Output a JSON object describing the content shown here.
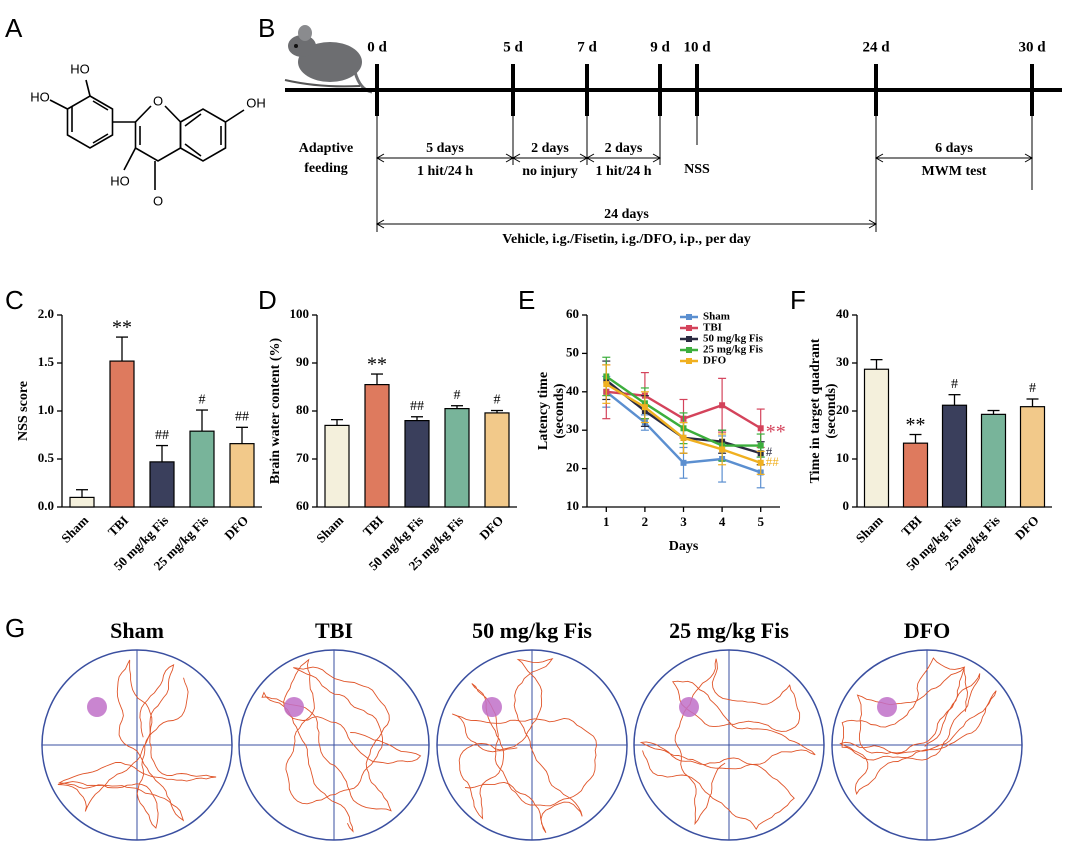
{
  "panel_labels": [
    "A",
    "B",
    "C",
    "D",
    "E",
    "F",
    "G"
  ],
  "structure": {
    "labels": [
      "HO",
      "HO",
      "OH",
      "HO",
      "O",
      "O"
    ]
  },
  "timeline": {
    "days": [
      "0 d",
      "5 d",
      "7 d",
      "9 d",
      "10 d",
      "24 d",
      "30 d"
    ],
    "phases": [
      {
        "duration": "5 days",
        "detail": "1 hit/24 h"
      },
      {
        "duration": "2 days",
        "detail": "no injury"
      },
      {
        "duration": "2 days",
        "detail": "1 hit/24 h"
      },
      {
        "duration": "6 days",
        "detail": "MWM test"
      }
    ],
    "feeding": [
      "Adaptive",
      "feeding"
    ],
    "nss": "NSS",
    "treatment": {
      "duration": "24 days",
      "detail": "Vehicle, i.g./Fisetin, i.g./DFO, i.p., per day"
    }
  },
  "chart_data": [
    {
      "type": "bar",
      "ylabel": "NSS score",
      "categories": [
        "Sham",
        "TBI",
        "50 mg/kg Fis",
        "25 mg/kg Fis",
        "DFO"
      ],
      "values": [
        0.1,
        1.52,
        0.47,
        0.79,
        0.66
      ],
      "errors": [
        0.08,
        0.25,
        0.17,
        0.22,
        0.17
      ],
      "colors": [
        "#f4f0dc",
        "#de7a5e",
        "#3a3f5c",
        "#78b49a",
        "#f2c98a"
      ],
      "annotations": [
        null,
        "**",
        "##",
        "#",
        "##"
      ],
      "ylim": [
        0,
        2
      ],
      "yticks": [
        {
          "value": 0,
          "label": "0.0"
        },
        0.5,
        {
          "value": 1,
          "label": "1.0"
        },
        1.5,
        {
          "value": 2,
          "label": "2.0"
        }
      ]
    },
    {
      "type": "bar",
      "ylabel": "Brain water content (%)",
      "categories": [
        "Sham",
        "TBI",
        "50 mg/kg Fis",
        "25 mg/kg Fis",
        "DFO"
      ],
      "values": [
        77,
        85.5,
        78,
        80.5,
        79.6
      ],
      "errors": [
        1.2,
        2.2,
        0.8,
        0.6,
        0.5
      ],
      "colors": [
        "#f4f0dc",
        "#de7a5e",
        "#3a3f5c",
        "#78b49a",
        "#f2c98a"
      ],
      "annotations": [
        null,
        "**",
        "##",
        "#",
        "#"
      ],
      "ylim": [
        60,
        100
      ],
      "yticks": [
        60,
        70,
        80,
        90,
        100
      ]
    },
    {
      "type": "line",
      "xlabel": "Days",
      "ylabel": [
        "Latency time",
        "(seconds)"
      ],
      "x": [
        1,
        2,
        3,
        4,
        5
      ],
      "xlim": [
        0.5,
        5.5
      ],
      "xticks": [
        1,
        2,
        3,
        4,
        5
      ],
      "ylim": [
        10,
        60
      ],
      "yticks": [
        10,
        20,
        30,
        40,
        50,
        60
      ],
      "legend": "upper right",
      "series": [
        {
          "name": "Sham",
          "color": "#5b8fd0",
          "values": [
            40,
            32,
            21.5,
            22.5,
            19
          ],
          "errors": [
            4,
            2,
            4,
            6,
            4
          ],
          "annotation": null
        },
        {
          "name": "TBI",
          "color": "#d4435b",
          "values": [
            40,
            39,
            33,
            36.5,
            30.5
          ],
          "errors": [
            7,
            6,
            5,
            7,
            5
          ],
          "annotation": "**"
        },
        {
          "name": "50 mg/kg Fis",
          "color": "#2a2a40",
          "values": [
            43,
            35,
            28,
            27,
            24
          ],
          "errors": [
            5,
            4,
            4,
            3,
            3
          ],
          "annotation": "#"
        },
        {
          "name": "25 mg/kg Fis",
          "color": "#3cae3c",
          "values": [
            44,
            37,
            30.5,
            26,
            26
          ],
          "errors": [
            5,
            4,
            4,
            4,
            3
          ],
          "annotation": null
        },
        {
          "name": "DFO",
          "color": "#f0b020",
          "values": [
            42,
            36,
            28,
            25,
            21.5
          ],
          "errors": [
            5,
            4,
            4,
            4,
            3
          ],
          "annotation": "##"
        }
      ]
    },
    {
      "type": "bar",
      "ylabel": [
        "Time in target quadrant",
        "(seconds)"
      ],
      "categories": [
        "Sham",
        "TBI",
        "50 mg/kg Fis",
        "25 mg/kg Fis",
        "DFO"
      ],
      "values": [
        28.7,
        13.3,
        21.2,
        19.3,
        20.9
      ],
      "errors": [
        2,
        1.8,
        2.2,
        0.8,
        1.6
      ],
      "colors": [
        "#f4f0dc",
        "#de7a5e",
        "#3a3f5c",
        "#78b49a",
        "#f2c98a"
      ],
      "annotations": [
        null,
        "**",
        "#",
        null,
        "#"
      ],
      "ylim": [
        0,
        40
      ],
      "yticks": [
        0,
        10,
        20,
        30,
        40
      ]
    }
  ],
  "tracks": {
    "groups": [
      "Sham",
      "TBI",
      "50 mg/kg Fis",
      "25 mg/kg Fis",
      "DFO"
    ]
  }
}
